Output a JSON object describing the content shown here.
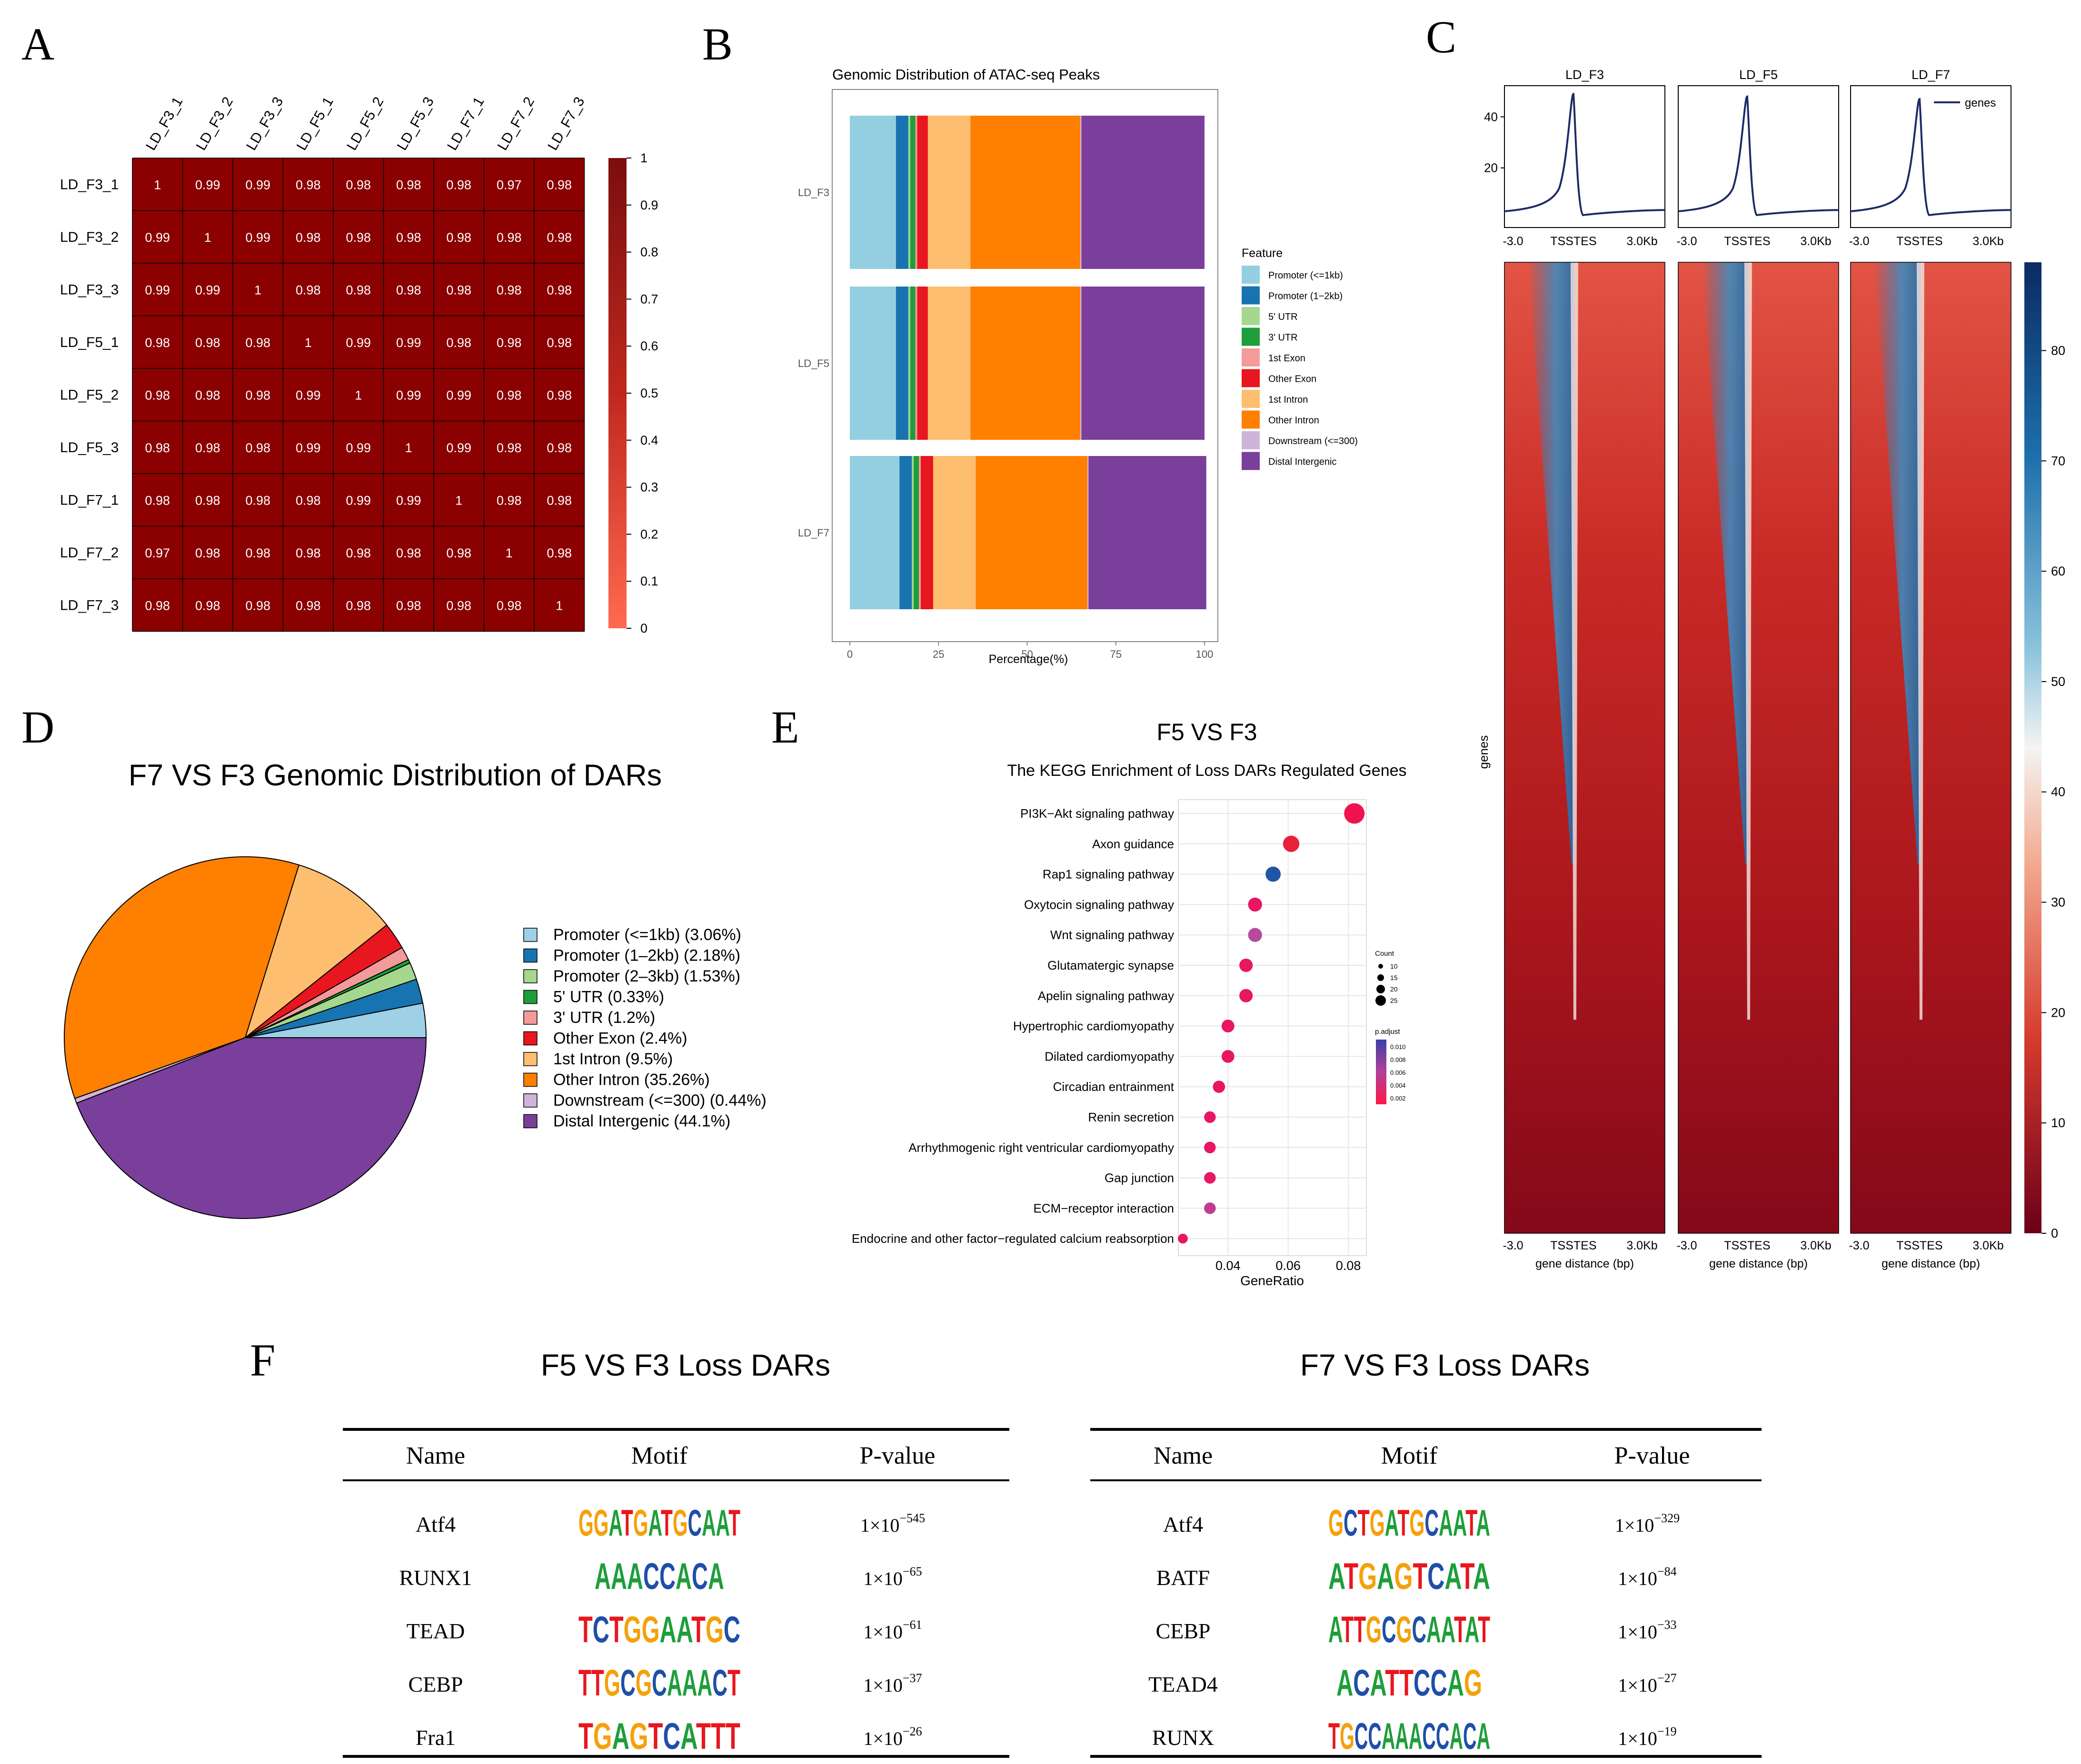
{
  "panel_letters": [
    "A",
    "B",
    "C",
    "D",
    "E",
    "F"
  ],
  "colors": {
    "heat_dark": "#8B0000",
    "heat_light": "#FF6A50",
    "feature": [
      "#93CFE1",
      "#1874B0",
      "#A3D88E",
      "#1E9E3A",
      "#F49A9A",
      "#E8161E",
      "#FDBE6F",
      "#FF7F00",
      "#CFB4D9",
      "#7A3E9B"
    ],
    "profile_line": "#1C2B66",
    "dot_colors": [
      "#F0124E",
      "#E8223A",
      "#2155A6",
      "#E81663",
      "#B84A9E",
      "#E8185F",
      "#E8185F",
      "#E81663",
      "#E81663",
      "#E81663",
      "#E81663",
      "#E81663",
      "#E81663",
      "#C03C92",
      "#E81663"
    ]
  },
  "panel_a": {
    "labels": [
      "LD_F3_1",
      "LD_F3_2",
      "LD_F3_3",
      "LD_F5_1",
      "LD_F5_2",
      "LD_F5_3",
      "LD_F7_1",
      "LD_F7_2",
      "LD_F7_3"
    ],
    "matrix": [
      [
        "1",
        "0.99",
        "0.99",
        "0.98",
        "0.98",
        "0.98",
        "0.98",
        "0.97",
        "0.98"
      ],
      [
        "0.99",
        "1",
        "0.99",
        "0.98",
        "0.98",
        "0.98",
        "0.98",
        "0.98",
        "0.98"
      ],
      [
        "0.99",
        "0.99",
        "1",
        "0.98",
        "0.98",
        "0.98",
        "0.98",
        "0.98",
        "0.98"
      ],
      [
        "0.98",
        "0.98",
        "0.98",
        "1",
        "0.99",
        "0.99",
        "0.98",
        "0.98",
        "0.98"
      ],
      [
        "0.98",
        "0.98",
        "0.98",
        "0.99",
        "1",
        "0.99",
        "0.99",
        "0.98",
        "0.98"
      ],
      [
        "0.98",
        "0.98",
        "0.98",
        "0.99",
        "0.99",
        "1",
        "0.99",
        "0.98",
        "0.98"
      ],
      [
        "0.98",
        "0.98",
        "0.98",
        "0.98",
        "0.99",
        "0.99",
        "1",
        "0.98",
        "0.98"
      ],
      [
        "0.97",
        "0.98",
        "0.98",
        "0.98",
        "0.98",
        "0.98",
        "0.98",
        "1",
        "0.98"
      ],
      [
        "0.98",
        "0.98",
        "0.98",
        "0.98",
        "0.98",
        "0.98",
        "0.98",
        "0.98",
        "1"
      ]
    ],
    "scale_ticks": [
      "1",
      "0.9",
      "0.8",
      "0.7",
      "0.6",
      "0.5",
      "0.4",
      "0.3",
      "0.2",
      "0.1",
      "0"
    ]
  },
  "chart_data": [
    {
      "type": "heatmap",
      "panel": "A",
      "title": "",
      "rows": [
        "LD_F3_1",
        "LD_F3_2",
        "LD_F3_3",
        "LD_F5_1",
        "LD_F5_2",
        "LD_F5_3",
        "LD_F7_1",
        "LD_F7_2",
        "LD_F7_3"
      ],
      "columns": [
        "LD_F3_1",
        "LD_F3_2",
        "LD_F3_3",
        "LD_F5_1",
        "LD_F5_2",
        "LD_F5_3",
        "LD_F7_1",
        "LD_F7_2",
        "LD_F7_3"
      ],
      "value_range": [
        0,
        1
      ]
    },
    {
      "type": "bar",
      "panel": "B",
      "orientation": "horizontal-stacked",
      "title": "Genomic Distribution of ATAC-seq Peaks",
      "xlabel": "Percentage(%)",
      "categories": [
        "LD_F3",
        "LD_F5",
        "LD_F7"
      ],
      "x_ticks": [
        "0",
        "25",
        "50",
        "75",
        "100"
      ],
      "legend_title": "Feature",
      "series": [
        {
          "name": "Promoter (<=1kb)",
          "values": [
            13,
            13,
            14
          ]
        },
        {
          "name": "Promoter (1−2kb)",
          "values": [
            3.5,
            3.5,
            3.5
          ]
        },
        {
          "name": "5' UTR",
          "values": [
            0.5,
            0.5,
            0.5
          ]
        },
        {
          "name": "3' UTR",
          "values": [
            1.5,
            1.5,
            1.5
          ]
        },
        {
          "name": "1st Exon",
          "values": [
            0.5,
            0.5,
            0.5
          ]
        },
        {
          "name": "Other Exon",
          "values": [
            3,
            3,
            3.5
          ]
        },
        {
          "name": "1st Intron",
          "values": [
            12,
            12,
            12
          ]
        },
        {
          "name": "Other Intron",
          "values": [
            31,
            31,
            31.5
          ]
        },
        {
          "name": "Downstream (<=300)",
          "values": [
            0.3,
            0.3,
            0.3
          ]
        },
        {
          "name": "Distal Intergenic",
          "values": [
            34.7,
            34.7,
            33.2
          ]
        }
      ]
    },
    {
      "type": "line",
      "panel": "C",
      "panels": [
        "LD_F3",
        "LD_F5",
        "LD_F7"
      ],
      "legend": "genes",
      "y_ticks": [
        "20",
        "40"
      ],
      "x_ticks": [
        "-3.0",
        "TSSTES",
        "3.0Kb"
      ],
      "xlabel": "gene distance (bp)",
      "ylabel_heatmap": "genes",
      "colorbar_ticks": [
        "0",
        "10",
        "20",
        "30",
        "40",
        "50",
        "60",
        "70",
        "80"
      ],
      "peak": [
        49,
        48,
        47
      ]
    },
    {
      "type": "pie",
      "panel": "D",
      "title": "F7 VS F3 Genomic Distribution of DARs",
      "labels": [
        "Promoter (<=1kb) (3.06%)",
        "Promoter (1–2kb) (2.18%)",
        "Promoter (2–3kb) (1.53%)",
        "5' UTR (0.33%)",
        "3' UTR (1.2%)",
        "Other Exon (2.4%)",
        "1st Intron (9.5%)",
        "Other Intron (35.26%)",
        "Downstream (<=300) (0.44%)",
        "Distal Intergenic (44.1%)"
      ],
      "values": [
        3.06,
        2.18,
        1.53,
        0.33,
        1.2,
        2.4,
        9.5,
        35.26,
        0.44,
        44.1
      ],
      "slice_colors": [
        "#9ED0E6",
        "#1874B0",
        "#A3D88E",
        "#1E9E3A",
        "#F49A9A",
        "#E8161E",
        "#FDBE6F",
        "#FF7F00",
        "#CFB4D9",
        "#7A3E9B"
      ]
    },
    {
      "type": "scatter",
      "panel": "E",
      "title": "F5 VS F3",
      "subtitle": "The KEGG Enrichment of Loss DARs Regulated Genes",
      "xlabel": "GeneRatio",
      "x_ticks": [
        "0.04",
        "0.06",
        "0.08"
      ],
      "xlim": [
        0.0235,
        0.086
      ],
      "categories": [
        "PI3K−Akt signaling pathway",
        "Axon guidance",
        "Rap1 signaling pathway",
        "Oxytocin signaling pathway",
        "Wnt signaling pathway",
        "Glutamatergic synapse",
        "Apelin signaling pathway",
        "Hypertrophic cardiomyopathy",
        "Dilated cardiomyopathy",
        "Circadian entrainment",
        "Renin secretion",
        "Arrhythmogenic right ventricular cardiomyopathy",
        "Gap junction",
        "ECM−receptor interaction",
        "Endocrine and other factor−regulated calcium reabsorption"
      ],
      "values": [
        0.082,
        0.061,
        0.055,
        0.049,
        0.049,
        0.046,
        0.046,
        0.04,
        0.04,
        0.037,
        0.034,
        0.034,
        0.034,
        0.034,
        0.025
      ],
      "sizes": [
        25,
        18,
        16,
        14,
        14,
        13,
        13,
        12,
        12,
        11,
        10,
        10,
        10,
        10,
        7
      ],
      "legend_count_title": "Count",
      "legend_count": [
        "10",
        "15",
        "20",
        "25"
      ],
      "legend_p_title": "p.adjust",
      "legend_p": [
        "0.010",
        "0.008",
        "0.006",
        "0.004",
        "0.002"
      ]
    }
  ],
  "panel_f": {
    "tables": [
      {
        "title": "F5 VS F3 Loss DARs",
        "headers": [
          "Name",
          "Motif",
          "P-value"
        ],
        "rows": [
          {
            "name": "Atf4",
            "motif": "GGATGATGCAAT",
            "p_base": "1×10",
            "p_exp": "−545"
          },
          {
            "name": "RUNX1",
            "motif": "AAACCACA",
            "p_base": "1×10",
            "p_exp": "−65"
          },
          {
            "name": "TEAD",
            "motif": "TCTGGAATGC",
            "p_base": "1×10",
            "p_exp": "−61"
          },
          {
            "name": "CEBP",
            "motif": "TTGCGCAAACT",
            "p_base": "1×10",
            "p_exp": "−37"
          },
          {
            "name": "Fra1",
            "motif": "TGAGTCATTT",
            "p_base": "1×10",
            "p_exp": "−26"
          }
        ]
      },
      {
        "title": "F7 VS F3 Loss DARs",
        "headers": [
          "Name",
          "Motif",
          "P-value"
        ],
        "rows": [
          {
            "name": "Atf4",
            "motif": "GCTGATGCAATA",
            "p_base": "1×10",
            "p_exp": "−329"
          },
          {
            "name": "BATF",
            "motif": "ATGAGTCATA",
            "p_base": "1×10",
            "p_exp": "−84"
          },
          {
            "name": "CEBP",
            "motif": "ATTGCGCAATAT",
            "p_base": "1×10",
            "p_exp": "−33"
          },
          {
            "name": "TEAD4",
            "motif": "ACATTCCAG",
            "p_base": "1×10",
            "p_exp": "−27"
          },
          {
            "name": "RUNX",
            "motif": "TGCCAAACCACA",
            "p_base": "1×10",
            "p_exp": "−19"
          }
        ]
      }
    ]
  }
}
